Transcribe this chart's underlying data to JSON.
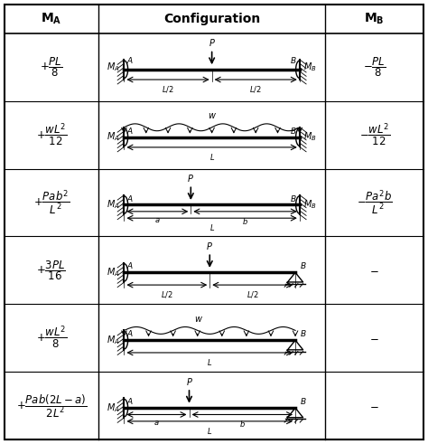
{
  "title_MA": "$\\mathbf{M_A}$",
  "title_config": "Configuration",
  "title_MB": "$\\mathbf{M_B}$",
  "background_color": "#ffffff",
  "line_color": "#000000",
  "grid_color": "#555555",
  "row_formulas_MA": [
    "$+\\dfrac{PL}{8}$",
    "$+\\dfrac{wL^2}{12}$",
    "$+\\dfrac{Pab^2}{L^2}$",
    "$+\\dfrac{3PL}{16}$",
    "$+\\dfrac{wL^2}{8}$",
    "$+\\dfrac{Pab(2L-a)}{2L^2}$"
  ],
  "row_formulas_MB": [
    "$-\\dfrac{PL}{8}$",
    "$-\\dfrac{wL^2}{12}$",
    "$-\\dfrac{Pa^2b}{L^2}$",
    "$-$",
    "$-$",
    "$-$"
  ],
  "n_rows": 6,
  "fig_width": 4.74,
  "fig_height": 4.91
}
